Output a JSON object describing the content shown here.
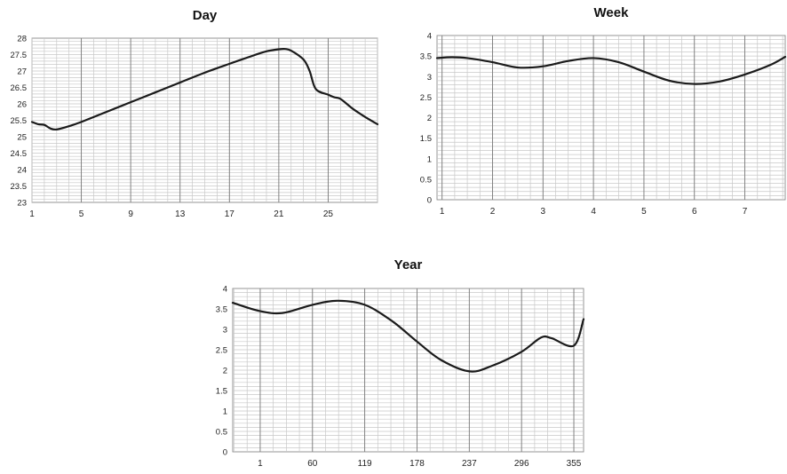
{
  "chart_data": [
    {
      "type": "line",
      "title": "Day",
      "xlabel": "",
      "ylabel": "",
      "ylim": [
        23,
        28
      ],
      "y_ticks": [
        "23",
        "23.5",
        "24",
        "24.5",
        "25",
        "25.5",
        "26",
        "26.5",
        "27",
        "27.5",
        "28"
      ],
      "x_ticks": [
        "1",
        "5",
        "9",
        "13",
        "17",
        "21",
        "25"
      ],
      "x_tick_values": [
        1,
        5,
        9,
        13,
        17,
        21,
        25
      ],
      "xlim": [
        1,
        29
      ],
      "grid": true,
      "minor_y_step": 0.1,
      "major_x_step": 4,
      "minor_x_step": 1,
      "series": [
        {
          "color": "#1a1a1a",
          "x": [
            1,
            1.5,
            2,
            2.5,
            3,
            4,
            5,
            7,
            9,
            11,
            13,
            15,
            17,
            19,
            20,
            21,
            21.5,
            22,
            23,
            23.5,
            24,
            25,
            25.5,
            26,
            27,
            28,
            29
          ],
          "y": [
            25.45,
            25.38,
            25.36,
            25.25,
            25.22,
            25.32,
            25.45,
            25.75,
            26.05,
            26.35,
            26.65,
            26.95,
            27.22,
            27.48,
            27.6,
            27.66,
            27.67,
            27.62,
            27.35,
            27.0,
            26.45,
            26.28,
            26.2,
            26.15,
            25.85,
            25.6,
            25.38
          ]
        }
      ]
    },
    {
      "type": "line",
      "title": "Week",
      "xlabel": "",
      "ylabel": "",
      "ylim": [
        0,
        4
      ],
      "y_ticks": [
        "0",
        "0.5",
        "1",
        "1.5",
        "2",
        "2.5",
        "3",
        "3.5",
        "4"
      ],
      "x_ticks": [
        "1",
        "2",
        "3",
        "4",
        "5",
        "6",
        "7"
      ],
      "x_tick_values": [
        1,
        2,
        3,
        4,
        5,
        6,
        7
      ],
      "xlim": [
        0.9,
        7.8
      ],
      "grid": true,
      "minor_y_step": 0.1,
      "major_x_step": 1,
      "minor_x_step": 0.25,
      "series": [
        {
          "color": "#1a1a1a",
          "x": [
            0.9,
            1.2,
            1.5,
            2,
            2.5,
            3,
            3.5,
            4,
            4.5,
            5,
            5.5,
            6,
            6.5,
            7,
            7.5,
            7.8
          ],
          "y": [
            3.45,
            3.47,
            3.45,
            3.35,
            3.22,
            3.25,
            3.38,
            3.45,
            3.35,
            3.12,
            2.9,
            2.82,
            2.88,
            3.05,
            3.28,
            3.48
          ]
        }
      ]
    },
    {
      "type": "line",
      "title": "Year",
      "xlabel": "",
      "ylabel": "",
      "ylim": [
        0,
        4
      ],
      "y_ticks": [
        "0",
        "0.5",
        "1",
        "1.5",
        "2",
        "2.5",
        "3",
        "3.5",
        "4"
      ],
      "x_ticks": [
        "1",
        "60",
        "119",
        "178",
        "237",
        "296",
        "355"
      ],
      "x_tick_values": [
        1,
        60,
        119,
        178,
        237,
        296,
        355
      ],
      "xlim": [
        -30,
        366
      ],
      "grid": true,
      "minor_y_step": 0.1,
      "major_x_step": 59,
      "minor_x_step": 14.75,
      "series": [
        {
          "color": "#1a1a1a",
          "x": [
            -30,
            0,
            26,
            60,
            88,
            119,
            150,
            178,
            205,
            237,
            262,
            296,
            318,
            330,
            355,
            366
          ],
          "y": [
            3.65,
            3.45,
            3.4,
            3.6,
            3.7,
            3.6,
            3.2,
            2.7,
            2.25,
            1.97,
            2.1,
            2.45,
            2.8,
            2.78,
            2.6,
            3.25
          ]
        }
      ]
    }
  ]
}
